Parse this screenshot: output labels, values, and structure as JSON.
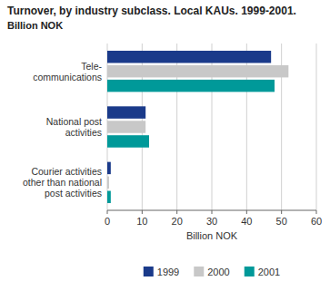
{
  "chart_data": {
    "type": "bar",
    "orientation": "horizontal",
    "title": "Turnover, by industry subclass. Local KAUs. 1999-2001.",
    "subtitle": "Billion NOK",
    "xlabel": "Billion NOK",
    "categories": [
      "Tele-\ncommunications",
      "National post\nactivities",
      "Courier activities\nother than national\npost activities"
    ],
    "series": [
      {
        "name": "1999",
        "color": "#1a3a8a",
        "values": [
          47.0,
          11.0,
          1.0
        ]
      },
      {
        "name": "2000",
        "color": "#c8c8c8",
        "values": [
          52.0,
          11.0,
          0.5
        ]
      },
      {
        "name": "2001",
        "color": "#009999",
        "values": [
          48.0,
          12.0,
          1.0
        ]
      }
    ],
    "xlim": [
      0,
      60
    ],
    "xticks": [
      0,
      10,
      20,
      30,
      40,
      50,
      60
    ],
    "grid": true,
    "legend": "bottom"
  }
}
